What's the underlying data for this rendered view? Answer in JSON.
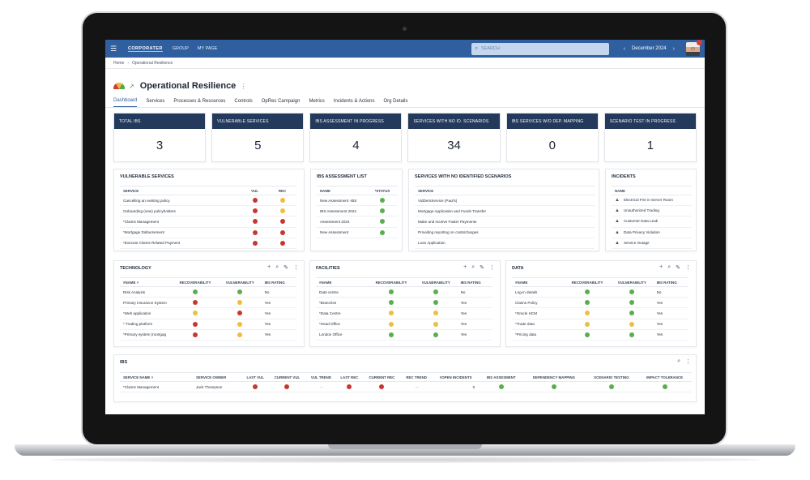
{
  "nav": {
    "logo": "CORPORATER",
    "links": [
      "GROUP",
      "MY PAGE"
    ],
    "search_placeholder": "SEARCH",
    "period": "December 2024"
  },
  "breadcrumb": [
    "Home",
    "Operational Resilience"
  ],
  "page": {
    "title": "Operational Resilience"
  },
  "tabs": [
    "Dashboard",
    "Services",
    "Processes & Resources",
    "Controls",
    "OpRes Campaign",
    "Metrics",
    "Incidents & Actions",
    "Org Details"
  ],
  "kpis": [
    {
      "label": "TOTAL IBS",
      "value": "3"
    },
    {
      "label": "VULNERABLE SERVICES",
      "value": "5"
    },
    {
      "label": "IBS ASSESSMENT IN PROGRESS",
      "value": "4"
    },
    {
      "label": "SERVICES WITH NO ID. SCENARIOS",
      "value": "34"
    },
    {
      "label": "IBS SERVICES W/O DEP. MAPPING",
      "value": "0"
    },
    {
      "label": "SCENARIO TEST IN PROGRESS",
      "value": "1"
    }
  ],
  "vulnerable_services": {
    "title": "VULNERABLE SERVICES",
    "columns": [
      "SERVICE",
      "VUL",
      "REC"
    ],
    "rows": [
      {
        "service": "Cancelling an existing policy",
        "vul": "red",
        "rec": "yellow"
      },
      {
        "service": "Onboarding (new) policyholders",
        "vul": "red",
        "rec": "yellow"
      },
      {
        "service": "*Claims Management",
        "vul": "red",
        "rec": "red"
      },
      {
        "service": "*Mortgage Disbursement",
        "vul": "red",
        "rec": "red"
      },
      {
        "service": "*Execute Claims Related Payment",
        "vul": "red",
        "rec": "red"
      }
    ]
  },
  "ibs_assessment_list": {
    "title": "IBS ASSESSMENT LIST",
    "columns": [
      "NAME",
      "*STATUS"
    ],
    "rows": [
      {
        "name": "New Assessment -IBS",
        "status": "green"
      },
      {
        "name": "IBS Assessment 2024",
        "status": "green"
      },
      {
        "name": "Assessment 2024",
        "status": "green"
      },
      {
        "name": "New Assessment",
        "status": "green"
      }
    ]
  },
  "no_scenarios": {
    "title": "SERVICES WITH NO IDENTIFIED SCENARIOS",
    "columns": [
      "SERVICE"
    ],
    "rows": [
      "VidDemService (Paul's)",
      "Mortgage Application and Funds Transfer",
      "Make and receive Faster Payments",
      "Providing reporting on costs/charges",
      "Loan Application"
    ]
  },
  "incidents": {
    "title": "INCIDENTS",
    "columns": [
      "NAME"
    ],
    "rows": [
      "Electrical Fire in Server Room",
      "Unauthorized Trading",
      "Customer Data Leak",
      "Data Privacy Violation",
      "Service Outage"
    ]
  },
  "technology": {
    "title": "TECHNOLOGY",
    "columns": [
      "#NAME ˄",
      "RECOVERABILITY",
      "VULNERABILITY",
      "IBS RATING"
    ],
    "rows": [
      {
        "name": "Risk Analysis",
        "rec": "green",
        "vul": "green",
        "ibs": "No"
      },
      {
        "name": "Primary Insurance System",
        "rec": "red",
        "vul": "yellow",
        "ibs": "Yes"
      },
      {
        "name": "*Web application",
        "rec": "yellow",
        "vul": "red",
        "ibs": "Yes"
      },
      {
        "name": "* Trading platform",
        "rec": "red",
        "vul": "yellow",
        "ibs": "Yes"
      },
      {
        "name": "*Primary system (mortgag",
        "rec": "red",
        "vul": "yellow",
        "ibs": "Yes"
      }
    ]
  },
  "facilities": {
    "title": "FACILITIES",
    "columns": [
      "#NAME",
      "RECOVERABILITY",
      "VULNERABILITY",
      "IBS RATING"
    ],
    "rows": [
      {
        "name": "Data centre",
        "rec": "green",
        "vul": "green",
        "ibs": "No"
      },
      {
        "name": "*Branches",
        "rec": "green",
        "vul": "green",
        "ibs": "Yes"
      },
      {
        "name": "*Data Centre",
        "rec": "yellow",
        "vul": "yellow",
        "ibs": "Yes"
      },
      {
        "name": "*Head Office",
        "rec": "yellow",
        "vul": "yellow",
        "ibs": "Yes"
      },
      {
        "name": "London Office",
        "rec": "green",
        "vul": "green",
        "ibs": "Yes"
      }
    ]
  },
  "data_panel": {
    "title": "DATA",
    "columns": [
      "#NAME",
      "RECOVERABILITY",
      "VULNERABILITY",
      "IBS RATING"
    ],
    "rows": [
      {
        "name": "Log-in details",
        "rec": "green",
        "vul": "green",
        "ibs": "No"
      },
      {
        "name": "Claims Policy",
        "rec": "green",
        "vul": "green",
        "ibs": "Yes"
      },
      {
        "name": "*Oracle HCM",
        "rec": "yellow",
        "vul": "green",
        "ibs": "Yes"
      },
      {
        "name": "*Trade data",
        "rec": "yellow",
        "vul": "yellow",
        "ibs": "Yes"
      },
      {
        "name": "*Pricing data",
        "rec": "green",
        "vul": "green",
        "ibs": "Yes"
      }
    ]
  },
  "ibs": {
    "title": "IBS",
    "columns": [
      "SERVICE NAME ˄",
      "SERVICE OWNER",
      "LAST VUL",
      "CURRENT VUL",
      "VUL TREND",
      "LAST REC",
      "CURRENT REC",
      "REC TREND",
      "#OPEN INCIDENTS",
      "IBS ASSESMENT",
      "DEPENDENCY MAPPING",
      "SCENARIO TESTING",
      "IMPACT TOLERANCE"
    ],
    "rows": [
      {
        "service": "*Claims Management",
        "owner": "Jack Thompson",
        "last_vul": "red",
        "current_vul": "red",
        "vul_trend": "→",
        "last_rec": "red",
        "current_rec": "red",
        "rec_trend": "→",
        "open_incidents": "0",
        "assessment": "green",
        "dependency": "green",
        "scenario": "green",
        "tolerance": "green"
      }
    ]
  },
  "icons": {
    "add": "plus-icon",
    "search": "search-icon",
    "edit": "pencil-icon",
    "more": "kebab-icon",
    "incident": "warning-icon"
  },
  "colors": {
    "header": "#2f5f9e",
    "kpi_header": "#233a5c",
    "red": "#c8372f",
    "yellow": "#efbe3c",
    "green": "#5aae4e",
    "trend": "#efb01f"
  }
}
